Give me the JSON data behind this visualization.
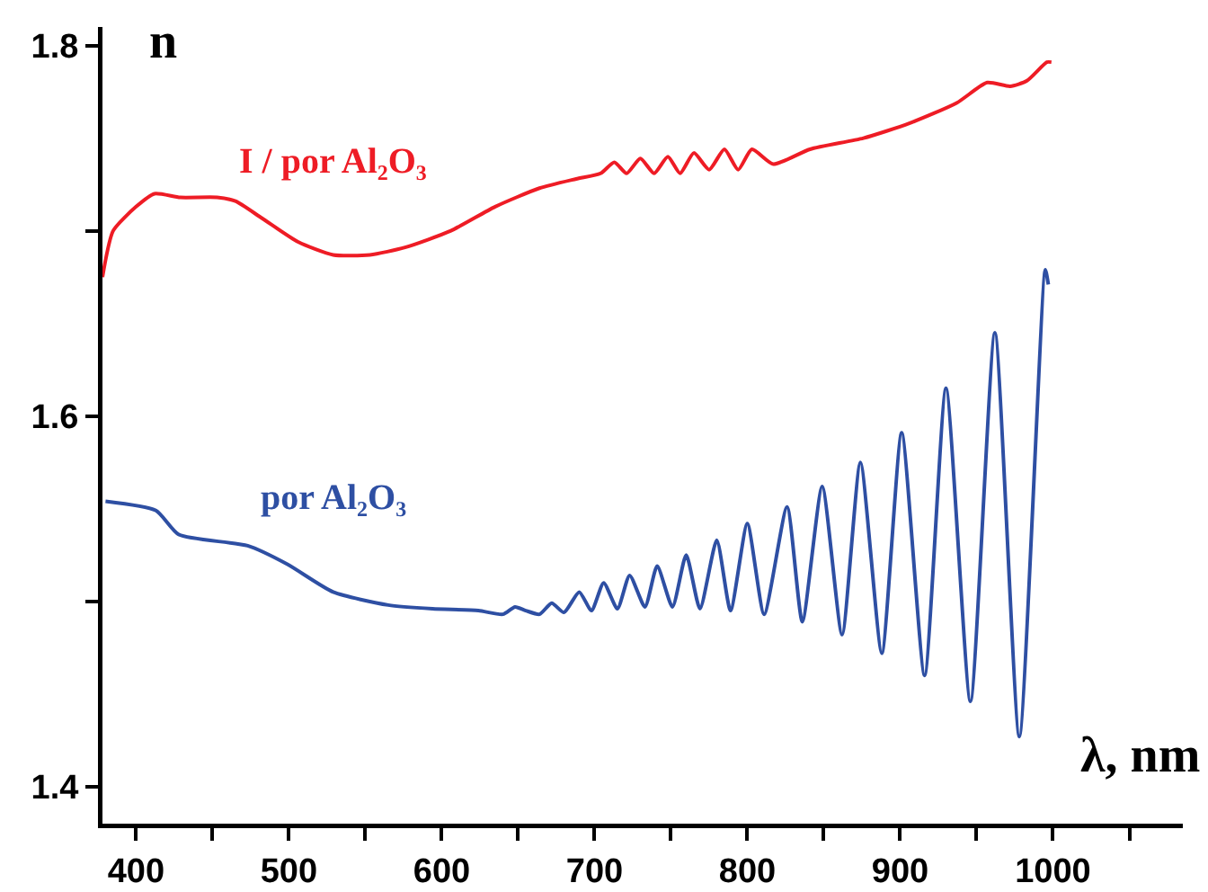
{
  "chart_data": {
    "type": "line",
    "xlabel": "λ, nm",
    "ylabel": "n",
    "xlim": [
      378,
      1085
    ],
    "ylim": [
      1.38,
      1.81
    ],
    "xticks": [
      400,
      {
        "value": 450,
        "label": null
      },
      500,
      {
        "value": 550,
        "label": null
      },
      600,
      {
        "value": 650,
        "label": null
      },
      700,
      {
        "value": 750,
        "label": null
      },
      800,
      {
        "value": 850,
        "label": null
      },
      900,
      {
        "value": 950,
        "label": null
      },
      1000,
      {
        "value": 1050,
        "label": null
      }
    ],
    "yticks": [
      1.4,
      {
        "value": 1.5,
        "label": null
      },
      1.6,
      {
        "value": 1.7,
        "label": null
      },
      1.8
    ],
    "grid": false,
    "legend": false,
    "marker": "none",
    "line_style": "solid",
    "series": [
      {
        "name": "I / por Al₂O₃",
        "color": "#ee1c25",
        "x": [
          378,
          385,
          400,
          412,
          429,
          453,
          465,
          482,
          506,
          529,
          553,
          576,
          606,
          635,
          664,
          688,
          704,
          713,
          721,
          730,
          739,
          748,
          756,
          765,
          775,
          785,
          794,
          803,
          817,
          841,
          876,
          906,
          937,
          957,
          972,
          983,
          996,
          999
        ],
        "values": [
          1.675,
          1.7,
          1.713,
          1.72,
          1.718,
          1.718,
          1.716,
          1.707,
          1.694,
          1.687,
          1.687,
          1.691,
          1.7,
          1.713,
          1.723,
          1.728,
          1.731,
          1.737,
          1.731,
          1.739,
          1.731,
          1.74,
          1.731,
          1.742,
          1.733,
          1.744,
          1.733,
          1.744,
          1.736,
          1.744,
          1.75,
          1.758,
          1.769,
          1.78,
          1.778,
          1.781,
          1.791,
          1.791
        ]
      },
      {
        "name": "por Al₂O₃",
        "color": "#2e4fa3",
        "x": [
          380,
          413,
          428,
          473,
          499,
          529,
          565,
          594,
          624,
          640,
          648,
          655,
          664,
          672,
          680,
          690,
          698,
          706,
          715,
          723,
          733,
          741,
          751,
          760,
          769,
          780,
          789,
          800,
          811,
          826,
          836,
          849,
          862,
          874,
          888,
          901,
          916,
          930,
          946,
          962,
          978,
          995,
          997
        ],
        "values": [
          1.554,
          1.549,
          1.536,
          1.53,
          1.52,
          1.505,
          1.498,
          1.496,
          1.495,
          1.493,
          1.497,
          1.495,
          1.493,
          1.499,
          1.494,
          1.505,
          1.495,
          1.51,
          1.496,
          1.514,
          1.497,
          1.519,
          1.497,
          1.525,
          1.496,
          1.533,
          1.495,
          1.542,
          1.493,
          1.551,
          1.489,
          1.562,
          1.482,
          1.575,
          1.472,
          1.591,
          1.46,
          1.615,
          1.446,
          1.645,
          1.427,
          1.679,
          1.671
        ]
      }
    ]
  }
}
